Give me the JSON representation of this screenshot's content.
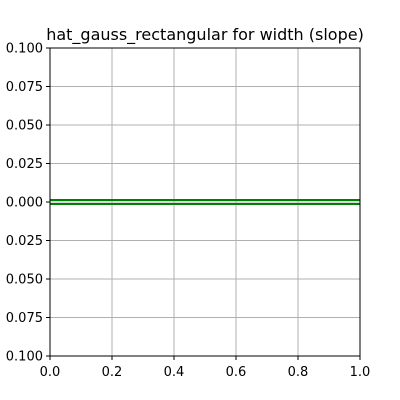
{
  "chart_data": {
    "type": "line",
    "title": "hat_gauss_rectangular for width (slope)",
    "xlabel": "",
    "ylabel": "",
    "xlim": [
      0.0,
      1.0
    ],
    "ylim": [
      -0.1,
      0.1
    ],
    "grid": true,
    "x_ticks": [
      0.0,
      0.2,
      0.4,
      0.6,
      0.8,
      1.0
    ],
    "x_tick_labels": [
      "0.0",
      "0.2",
      "0.4",
      "0.6",
      "0.8",
      "1.0"
    ],
    "y_ticks": [
      0.1,
      0.075,
      0.05,
      0.025,
      0.0,
      -0.025,
      -0.05,
      -0.075,
      -0.1
    ],
    "y_tick_labels": [
      "0.100",
      "0.075",
      "0.050",
      "0.025",
      "0.000",
      "0.025",
      "0.050",
      "0.075",
      "0.100"
    ],
    "series": [
      {
        "color": "#008000",
        "x": [
          0.0,
          1.0
        ],
        "y": [
          0.0,
          0.0
        ]
      }
    ],
    "colors": {
      "series": "#008000",
      "grid": "#b0b0b0",
      "axis": "#000000"
    }
  }
}
